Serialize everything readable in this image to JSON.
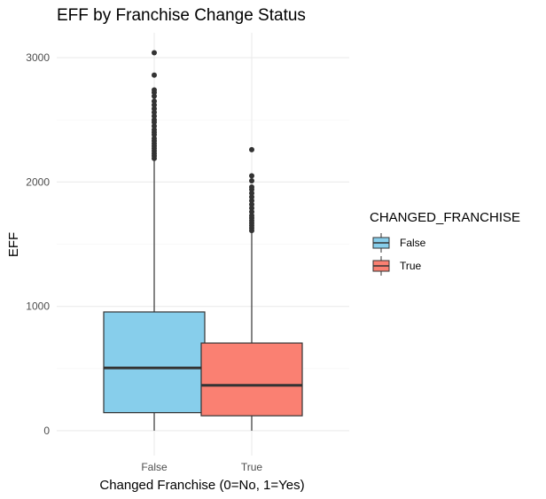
{
  "chart_data": {
    "type": "box",
    "title": "EFF by Franchise Change Status",
    "xlabel": "Changed Franchise (0=No, 1=Yes)",
    "ylabel": "EFF",
    "ylim": [
      -200,
      3200
    ],
    "yticks": [
      0,
      1000,
      2000,
      3000
    ],
    "grid": true,
    "legend": {
      "title": "CHANGED_FRANCHISE",
      "placement": "right",
      "entries": [
        {
          "label": "False",
          "color": "#87CEEB"
        },
        {
          "label": "True",
          "color": "#FA8072"
        }
      ]
    },
    "categories": [
      "False",
      "True"
    ],
    "boxes": [
      {
        "category": "False",
        "color": "#87CEEB",
        "min": 0,
        "q1": 145,
        "median": 505,
        "q3": 955,
        "whisker_high": 2170,
        "outliers": [
          2190,
          2210,
          2230,
          2250,
          2270,
          2290,
          2310,
          2330,
          2350,
          2380,
          2400,
          2420,
          2450,
          2480,
          2500,
          2530,
          2560,
          2590,
          2620,
          2650,
          2690,
          2720,
          2740,
          2860,
          3040
        ]
      },
      {
        "category": "True",
        "color": "#FA8072",
        "min": 0,
        "q1": 120,
        "median": 365,
        "q3": 705,
        "whisker_high": 1590,
        "outliers": [
          1610,
          1630,
          1650,
          1670,
          1690,
          1710,
          1730,
          1760,
          1790,
          1820,
          1850,
          1880,
          1910,
          1940,
          1960,
          2010,
          2050,
          2260
        ]
      }
    ]
  }
}
